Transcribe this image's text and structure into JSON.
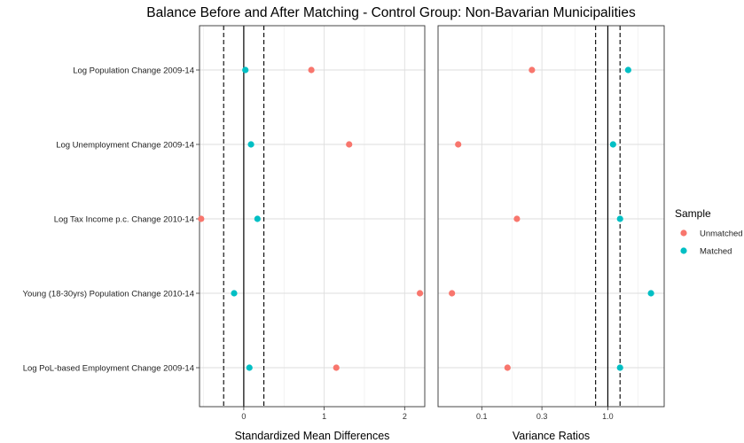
{
  "chart_data": {
    "type": "scatter",
    "title": "Balance Before and After Matching - Control Group: Non-Bavarian Municipalities",
    "covariates": [
      "Log Population Change 2009-14",
      "Log Unemployment Change 2009-14",
      "Log Tax Income p.c. Change 2010-14",
      "Young (18-30yrs) Population Change 2010-14",
      "Log PoL-based Employment Change 2009-14"
    ],
    "legend": {
      "title": "Sample",
      "placement": "right",
      "entries": [
        {
          "name": "Unmatched",
          "color": "#F8766D"
        },
        {
          "name": "Matched",
          "color": "#00BFC4"
        }
      ]
    },
    "panels": [
      {
        "id": "smd",
        "xlabel": "Standardized Mean Differences",
        "scale": "linear",
        "xlim": [
          -0.55,
          2.25
        ],
        "ticks": [
          0,
          1,
          2
        ],
        "tick_labels": [
          "0",
          "1",
          "2"
        ],
        "solid_line": 0,
        "dashed_lines": [
          -0.25,
          0.25
        ],
        "series": [
          {
            "name": "Unmatched",
            "values": [
              0.84,
              1.31,
              -0.53,
              2.19,
              1.15
            ]
          },
          {
            "name": "Matched",
            "values": [
              0.02,
              0.09,
              0.17,
              -0.12,
              0.07
            ]
          }
        ]
      },
      {
        "id": "vr",
        "xlabel": "Variance Ratios",
        "scale": "log",
        "xlim": [
          0.045,
          2.8
        ],
        "ticks": [
          0.1,
          0.3,
          1.0
        ],
        "tick_labels": [
          "0.1",
          "0.3",
          "1.0"
        ],
        "solid_line": 1.0,
        "dashed_lines": [
          0.8,
          1.25
        ],
        "series": [
          {
            "name": "Unmatched",
            "values": [
              0.25,
              0.065,
              0.19,
              0.058,
              0.16
            ]
          },
          {
            "name": "Matched",
            "values": [
              1.45,
              1.1,
              1.25,
              2.2,
              1.25
            ]
          }
        ]
      }
    ]
  }
}
